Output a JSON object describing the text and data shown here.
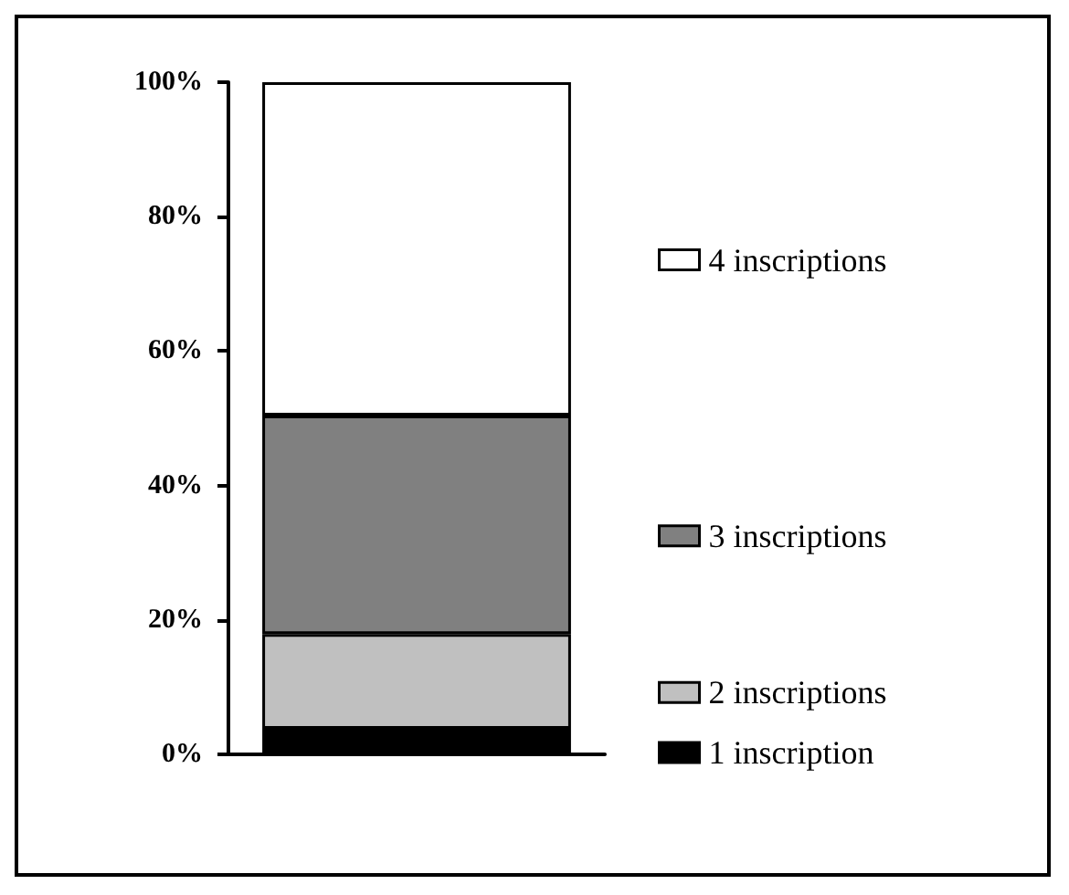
{
  "chart_data": {
    "type": "bar",
    "stacked": true,
    "categories": [
      null
    ],
    "series": [
      {
        "name": "1 inscription",
        "color": "#000000",
        "values": [
          3.8
        ]
      },
      {
        "name": "2 inscriptions",
        "color": "#c0c0c0",
        "values": [
          14.1
        ]
      },
      {
        "name": "3 inscriptions",
        "color": "#808080",
        "values": [
          32.5
        ]
      },
      {
        "name": "4 inscriptions",
        "color": "#ffffff",
        "values": [
          49.6
        ]
      }
    ],
    "ylim": [
      0,
      100
    ],
    "yticks": [
      {
        "value": 0,
        "label": "0%"
      },
      {
        "value": 20,
        "label": "20%"
      },
      {
        "value": 40,
        "label": "40%"
      },
      {
        "value": 60,
        "label": "60%"
      },
      {
        "value": 80,
        "label": "80%"
      },
      {
        "value": 100,
        "label": "100%"
      }
    ],
    "grid": false,
    "legend": "right"
  }
}
